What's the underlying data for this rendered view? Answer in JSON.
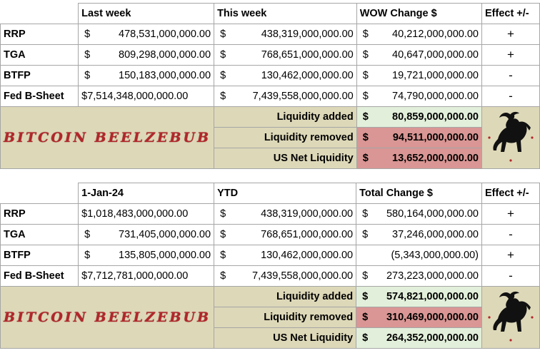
{
  "currency": "$",
  "weekly": {
    "headers": [
      "Last week",
      "This week",
      "WOW Change $",
      "Effect +/-"
    ],
    "rows": [
      {
        "label": "RRP",
        "a": "478,531,000,000.00",
        "b": "438,319,000,000.00",
        "c": "40,212,000,000.00",
        "effect": "+"
      },
      {
        "label": "TGA",
        "a": "809,298,000,000.00",
        "b": "768,651,000,000.00",
        "c": "40,647,000,000.00",
        "effect": "+"
      },
      {
        "label": "BTFP",
        "a": "150,183,000,000.00",
        "b": "130,462,000,000.00",
        "c": "19,721,000,000.00",
        "effect": "-"
      },
      {
        "label": "Fed B-Sheet",
        "a": "$7,514,348,000,000.00",
        "b": "7,439,558,000,000.00",
        "c": "74,790,000,000.00",
        "effect": "-"
      }
    ],
    "summary": [
      {
        "label": "Liquidity added",
        "value": "80,859,000,000.00"
      },
      {
        "label": "Liquidity removed",
        "value": "94,511,000,000.00"
      },
      {
        "label": "US Net Liquidity",
        "value": "13,652,000,000.00"
      }
    ],
    "logo_text": "BITCOIN BEELZEBUB"
  },
  "ytd": {
    "headers": [
      "1-Jan-24",
      "YTD",
      "Total Change $",
      "Effect +/-"
    ],
    "rows": [
      {
        "label": "RRP",
        "a": "$1,018,483,000,000.00",
        "b": "438,319,000,000.00",
        "c": "580,164,000,000.00",
        "effect": "+"
      },
      {
        "label": "TGA",
        "a": "731,405,000,000.00",
        "b": "768,651,000,000.00",
        "c": "37,246,000,000.00",
        "effect": "-"
      },
      {
        "label": "BTFP",
        "a": "135,805,000,000.00",
        "b": "130,462,000,000.00",
        "c": "(5,343,000,000.00)",
        "effect": "+"
      },
      {
        "label": "Fed B-Sheet",
        "a": "$7,712,781,000,000.00",
        "b": "7,439,558,000,000.00",
        "c": "273,223,000,000.00",
        "effect": "-"
      }
    ],
    "summary": [
      {
        "label": "Liquidity added",
        "value": "574,821,000,000.00"
      },
      {
        "label": "Liquidity removed",
        "value": "310,469,000,000.00"
      },
      {
        "label": "US Net Liquidity",
        "value": "264,352,000,000.00"
      }
    ],
    "logo_text": "BITCOIN BEELZEBUB"
  }
}
